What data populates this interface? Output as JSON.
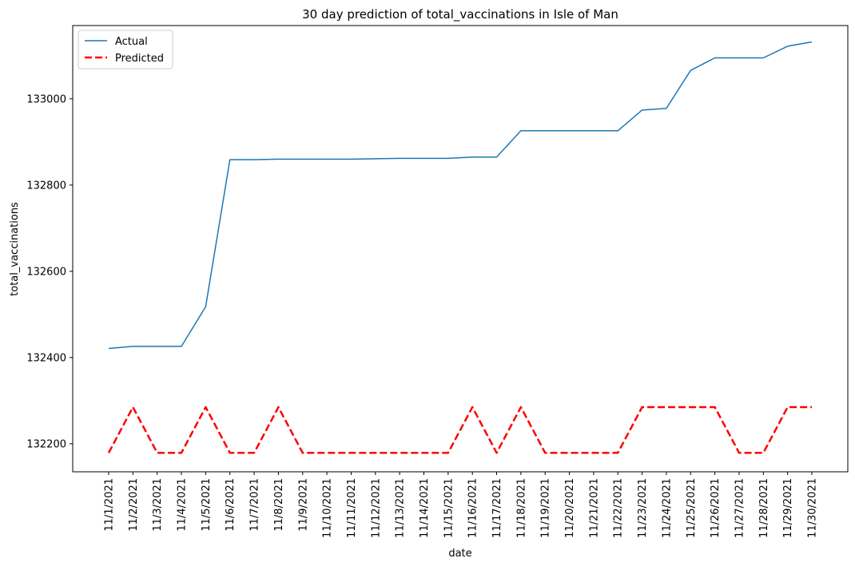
{
  "chart_data": {
    "type": "line",
    "title": "30 day prediction of total_vaccinations in Isle of Man",
    "xlabel": "date",
    "ylabel": "total_vaccinations",
    "categories": [
      "11/1/2021",
      "11/2/2021",
      "11/3/2021",
      "11/4/2021",
      "11/5/2021",
      "11/6/2021",
      "11/7/2021",
      "11/8/2021",
      "11/9/2021",
      "11/10/2021",
      "11/11/2021",
      "11/12/2021",
      "11/13/2021",
      "11/14/2021",
      "11/15/2021",
      "11/16/2021",
      "11/17/2021",
      "11/18/2021",
      "11/19/2021",
      "11/20/2021",
      "11/21/2021",
      "11/22/2021",
      "11/23/2021",
      "11/24/2021",
      "11/25/2021",
      "11/26/2021",
      "11/27/2021",
      "11/28/2021",
      "11/29/2021",
      "11/30/2021"
    ],
    "yticks": [
      132200,
      132400,
      132600,
      132800,
      133000
    ],
    "ylim": [
      132135,
      133170
    ],
    "grid": false,
    "legend_position": "top-left",
    "series": [
      {
        "name": "Actual",
        "color": "#1f77b4",
        "style": "solid",
        "values": [
          132421,
          132426,
          132426,
          132426,
          132518,
          132859,
          132859,
          132860,
          132860,
          132860,
          132860,
          132861,
          132862,
          132862,
          132862,
          132865,
          132865,
          132926,
          132926,
          132926,
          132926,
          132926,
          132974,
          132978,
          133066,
          133095,
          133095,
          133095,
          133122,
          133132
        ]
      },
      {
        "name": "Predicted",
        "color": "#ff0000",
        "style": "dashed",
        "values": [
          132179,
          132285,
          132179,
          132179,
          132285,
          132179,
          132179,
          132285,
          132179,
          132179,
          132179,
          132179,
          132179,
          132179,
          132179,
          132285,
          132179,
          132285,
          132179,
          132179,
          132179,
          132179,
          132285,
          132285,
          132285,
          132285,
          132179,
          132179,
          132285,
          132285
        ]
      }
    ]
  }
}
